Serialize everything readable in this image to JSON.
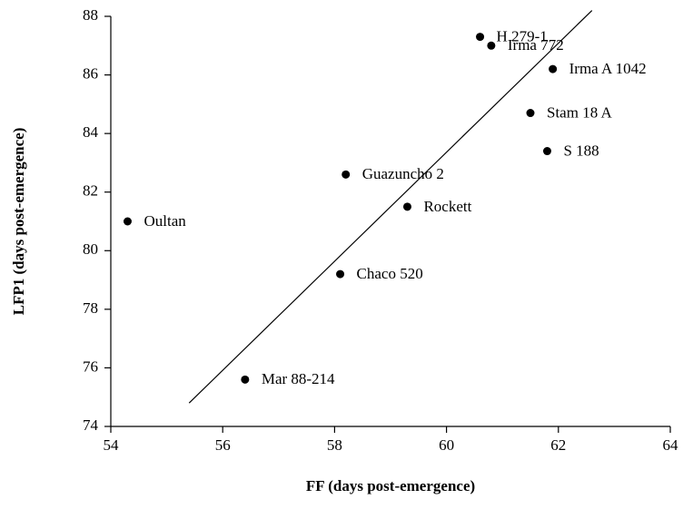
{
  "chart_data": {
    "type": "scatter",
    "x_label": "FF (days post-emergence)",
    "y_label": "LFP1 (days post-emergence)",
    "labels": [
      "H 279-1",
      "Irma 772",
      "Irma A 1042",
      "Stam 18 A",
      "S 188",
      "Guazuncho 2",
      "Rockett",
      "Oultan",
      "Chaco 520",
      "Mar 88-214"
    ],
    "x": [
      60.6,
      60.8,
      61.9,
      61.5,
      61.8,
      58.2,
      59.3,
      54.3,
      58.1,
      56.4
    ],
    "y": [
      87.3,
      87.0,
      86.2,
      84.7,
      83.4,
      82.6,
      81.5,
      81.0,
      79.2,
      75.6
    ],
    "color": "#000000",
    "fit_line": {
      "x": [
        55.4,
        62.6
      ],
      "y": [
        74.8,
        88.2
      ]
    },
    "xlim": [
      54,
      64
    ],
    "ylim": [
      74,
      88
    ],
    "xticks": [
      54,
      56,
      58,
      60,
      62,
      64
    ],
    "yticks": [
      74,
      76,
      78,
      80,
      82,
      84,
      86,
      88
    ]
  }
}
